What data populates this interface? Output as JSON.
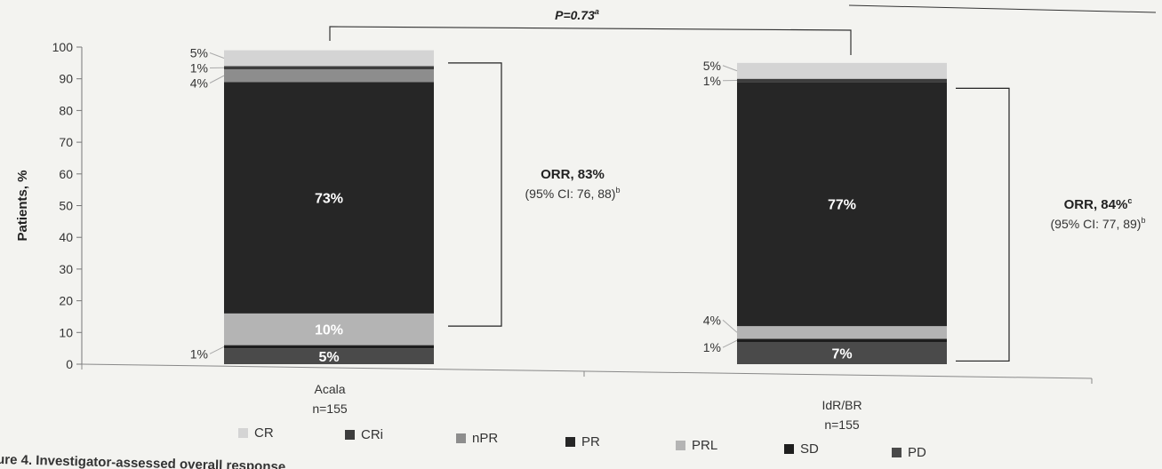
{
  "chart_data": {
    "type": "bar",
    "stacked": true,
    "ylabel": "Patients, %",
    "ylim": [
      0,
      100
    ],
    "yticks": [
      0,
      10,
      20,
      30,
      40,
      50,
      60,
      70,
      80,
      90,
      100
    ],
    "categories": [
      "Acala",
      "IdR/BR"
    ],
    "category_sublabels": [
      "n=155",
      "n=155"
    ],
    "colors": {
      "CR": "#d4d4d4",
      "CRi": "#3d3d3d",
      "nPR": "#8d8d8d",
      "PR": "#262626",
      "PRL": "#b4b4b4",
      "SD": "#1e1e1e",
      "PD": "#4a4a4a"
    },
    "series": [
      {
        "name": "PD",
        "values": [
          5,
          7
        ]
      },
      {
        "name": "SD",
        "values": [
          1,
          1
        ]
      },
      {
        "name": "PRL",
        "values": [
          10,
          4
        ]
      },
      {
        "name": "PR",
        "values": [
          73,
          77
        ]
      },
      {
        "name": "nPR",
        "values": [
          4,
          0
        ]
      },
      {
        "name": "CRi",
        "values": [
          1,
          1
        ]
      },
      {
        "name": "CR",
        "values": [
          5,
          5
        ]
      }
    ],
    "segment_labels": [
      [
        {
          "series": "PD",
          "text": "5%",
          "inside": true
        },
        {
          "series": "SD",
          "text": "1%",
          "inside": false
        },
        {
          "series": "PRL",
          "text": "10%",
          "inside": true
        },
        {
          "series": "PR",
          "text": "73%",
          "inside": true
        },
        {
          "series": "nPR",
          "text": "4%",
          "inside": false
        },
        {
          "series": "CRi",
          "text": "1%",
          "inside": false
        },
        {
          "series": "CR",
          "text": "5%",
          "inside": false
        }
      ],
      [
        {
          "series": "PD",
          "text": "7%",
          "inside": true
        },
        {
          "series": "SD",
          "text": "1%",
          "inside": false
        },
        {
          "series": "PRL",
          "text": "4%",
          "inside": false
        },
        {
          "series": "PR",
          "text": "77%",
          "inside": true
        },
        {
          "series": "CRi",
          "text": "1%",
          "inside": false
        },
        {
          "series": "CR",
          "text": "5%",
          "inside": false
        }
      ]
    ],
    "annotations": {
      "orr": [
        {
          "title": "ORR, 83%",
          "title_sup": "",
          "ci": "(95% CI: 76, 88)",
          "ci_sup": "b"
        },
        {
          "title": "ORR, 84%",
          "title_sup": "c",
          "ci": "(95% CI: 77, 89)",
          "ci_sup": "b"
        }
      ],
      "p_value": {
        "text": "P=0.73",
        "sup": "a"
      }
    },
    "legend": [
      "CR",
      "CRi",
      "nPR",
      "PR",
      "PRL",
      "SD",
      "PD"
    ],
    "legend_position": "bottom",
    "caption": "ure 4. Investigator-assessed overall response"
  }
}
